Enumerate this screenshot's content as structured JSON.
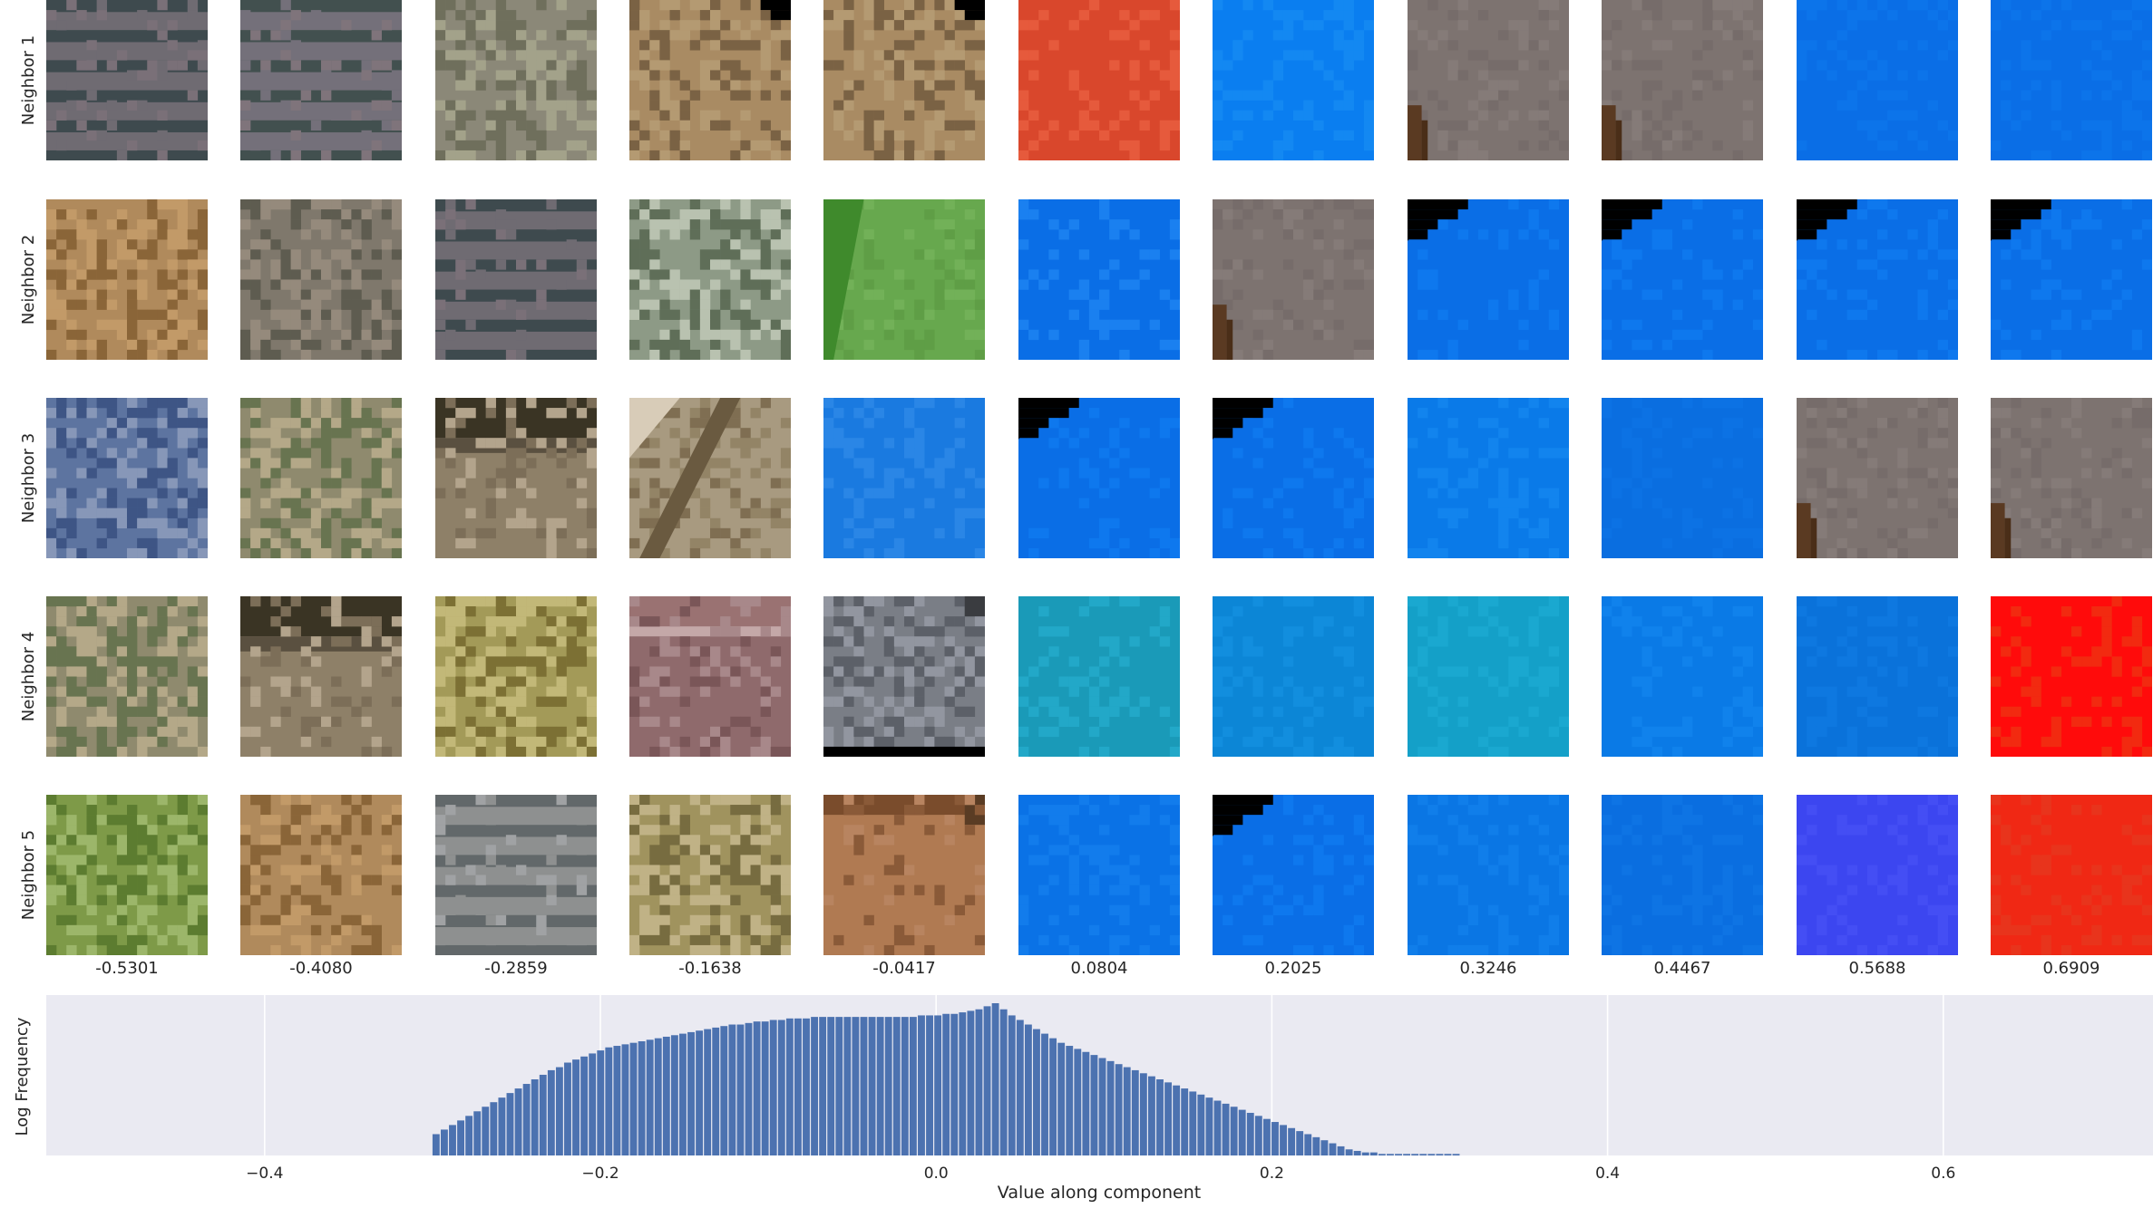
{
  "row_labels": [
    "Neighbor 1",
    "Neighbor 2",
    "Neighbor 3",
    "Neighbor 4",
    "Neighbor 5"
  ],
  "column_values": [
    "-0.5301",
    "-0.4080",
    "-0.2859",
    "-0.1638",
    "-0.0417",
    "0.0804",
    "0.2025",
    "0.3246",
    "0.4467",
    "0.5688",
    "0.6909"
  ],
  "tiles": [
    [
      {
        "kind": "stripes",
        "c1": "#6f6b72",
        "c2": "#3e4a4e",
        "c3": "#7a7078"
      },
      {
        "kind": "stripes",
        "c1": "#74707a",
        "c2": "#42504f",
        "c3": "#7f747b"
      },
      {
        "kind": "mottled",
        "c1": "#8b8878",
        "c2": "#6f6f5c",
        "c3": "#a3a28a"
      },
      {
        "kind": "dirt",
        "c1": "#a98b63",
        "c2": "#7a6244",
        "c3": "#b49a72",
        "corner": true
      },
      {
        "kind": "dirt",
        "c1": "#a98b63",
        "c2": "#7a6244",
        "c3": "#b49a72",
        "corner": true
      },
      {
        "kind": "solid",
        "c1": "#d9472c",
        "c2": "#e65a3c"
      },
      {
        "kind": "solid",
        "c1": "#0a7ef0",
        "c2": "#1388f2"
      },
      {
        "kind": "roof",
        "c1": "#7d7370",
        "c2": "#5a3a22"
      },
      {
        "kind": "roof",
        "c1": "#7d7370",
        "c2": "#5a3a22"
      },
      {
        "kind": "solid",
        "c1": "#0a6ee6",
        "c2": "#0c74ea"
      },
      {
        "kind": "solid",
        "c1": "#0a6ee6",
        "c2": "#0c74ea"
      }
    ],
    [
      {
        "kind": "dirt",
        "c1": "#b08a5c",
        "c2": "#8a6538",
        "c3": "#c29a68"
      },
      {
        "kind": "mottled",
        "c1": "#7f786c",
        "c2": "#5e5c50",
        "c3": "#958a7c"
      },
      {
        "kind": "stripes",
        "c1": "#6f6b72",
        "c2": "#3e4a4e",
        "c3": "#7a7078"
      },
      {
        "kind": "mottled",
        "c1": "#8d9a86",
        "c2": "#5f6e58",
        "c3": "#b9c2b0"
      },
      {
        "kind": "green",
        "c1": "#67a84e",
        "c2": "#3f8a2c"
      },
      {
        "kind": "solid",
        "c1": "#0a6ee6",
        "c2": "#1a80f0"
      },
      {
        "kind": "roof",
        "c1": "#7d7370",
        "c2": "#5a3a22"
      },
      {
        "kind": "blackcorner",
        "c1": "#0a6ee6",
        "c2": "#0e78ee"
      },
      {
        "kind": "blackcorner",
        "c1": "#0a6ee6",
        "c2": "#0e78ee"
      },
      {
        "kind": "blackcorner",
        "c1": "#0a6ee6",
        "c2": "#0e78ee"
      },
      {
        "kind": "blackcorner",
        "c1": "#0a6ee6",
        "c2": "#0e78ee"
      }
    ],
    [
      {
        "kind": "mottled",
        "c1": "#5d74a0",
        "c2": "#3e5585",
        "c3": "#8797b8"
      },
      {
        "kind": "mottled",
        "c1": "#8f8a6e",
        "c2": "#687450",
        "c3": "#b4a888"
      },
      {
        "kind": "shadow",
        "c1": "#8e8068",
        "c2": "#3a3424",
        "c3": "#b3a48c"
      },
      {
        "kind": "diag",
        "c1": "#a89a80",
        "c2": "#7f6e52",
        "c3": "#d8ccb8"
      },
      {
        "kind": "solid",
        "c1": "#1a7ae0",
        "c2": "#2a86e6"
      },
      {
        "kind": "blackcorner",
        "c1": "#0a6ee6",
        "c2": "#0e78ee"
      },
      {
        "kind": "blackcorner",
        "c1": "#0a6ee6",
        "c2": "#0e78ee"
      },
      {
        "kind": "solid",
        "c1": "#0a7ae8",
        "c2": "#1284ee"
      },
      {
        "kind": "solid",
        "c1": "#0a6ee0",
        "c2": "#0c72e4"
      },
      {
        "kind": "roof",
        "c1": "#7d7370",
        "c2": "#5a3a22"
      },
      {
        "kind": "roof",
        "c1": "#7d7370",
        "c2": "#5a3a22"
      }
    ],
    [
      {
        "kind": "mottled",
        "c1": "#8f8a6e",
        "c2": "#687450",
        "c3": "#b4a888"
      },
      {
        "kind": "shadow",
        "c1": "#8e8068",
        "c2": "#3a3424",
        "c3": "#b3a48c"
      },
      {
        "kind": "mottled",
        "c1": "#a39a58",
        "c2": "#7c7034",
        "c3": "#c2b878"
      },
      {
        "kind": "brick",
        "c1": "#8f6a6c",
        "c2": "#7a5658",
        "c3": "#a8888a"
      },
      {
        "kind": "gravel",
        "c1": "#7a7e86",
        "c2": "#5c6068",
        "c3": "#9296a0"
      },
      {
        "kind": "solid",
        "c1": "#1a9ab8",
        "c2": "#22a8c8"
      },
      {
        "kind": "solid",
        "c1": "#0c86d6",
        "c2": "#128ede"
      },
      {
        "kind": "solid",
        "c1": "#14a0c8",
        "c2": "#1aa8d0"
      },
      {
        "kind": "solid",
        "c1": "#0a7ae6",
        "c2": "#1082ec"
      },
      {
        "kind": "solid",
        "c1": "#0a72da",
        "c2": "#0e78e0"
      },
      {
        "kind": "solid",
        "c1": "#ff0b0b",
        "c2": "#f22a10"
      }
    ],
    [
      {
        "kind": "mottled",
        "c1": "#7e9a48",
        "c2": "#5c7c30",
        "c3": "#9cb66a"
      },
      {
        "kind": "dirt",
        "c1": "#b08a5c",
        "c2": "#8a6538",
        "c3": "#c29a68"
      },
      {
        "kind": "stripes",
        "c1": "#8e9090",
        "c2": "#62686a",
        "c3": "#a0a2a4"
      },
      {
        "kind": "mottled",
        "c1": "#a0935e",
        "c2": "#776c40",
        "c3": "#c0b286"
      },
      {
        "kind": "topband",
        "c1": "#b07a52",
        "c2": "#8a5a38"
      },
      {
        "kind": "solid",
        "c1": "#0a72e6",
        "c2": "#127cec"
      },
      {
        "kind": "blackcorner",
        "c1": "#0a6ee6",
        "c2": "#0e78ee"
      },
      {
        "kind": "solid",
        "c1": "#0a76e4",
        "c2": "#107eea"
      },
      {
        "kind": "solid",
        "c1": "#0a6ee0",
        "c2": "#0e74e4"
      },
      {
        "kind": "solid",
        "c1": "#3c46f0",
        "c2": "#444ef4"
      },
      {
        "kind": "solid",
        "c1": "#f02814",
        "c2": "#e8341c"
      }
    ]
  ],
  "histogram": {
    "ylabel": "Log Frequency",
    "xlabel": "Value along component",
    "xticks": [
      "−0.4",
      "−0.2",
      "0.0",
      "0.2",
      "0.4",
      "0.6"
    ],
    "tick_values": [
      -0.4,
      -0.2,
      0.0,
      0.2,
      0.4,
      0.6
    ]
  },
  "chart_data": {
    "type": "bar",
    "xlabel": "Value along component",
    "ylabel": "Log Frequency",
    "xlim": [
      -0.5301,
      0.7249
    ],
    "bin_width": 0.0049,
    "bins_start": -0.3,
    "log_frequency": [
      0.14,
      0.17,
      0.2,
      0.23,
      0.26,
      0.29,
      0.32,
      0.35,
      0.38,
      0.41,
      0.44,
      0.47,
      0.5,
      0.53,
      0.56,
      0.58,
      0.61,
      0.63,
      0.65,
      0.67,
      0.69,
      0.71,
      0.72,
      0.73,
      0.74,
      0.75,
      0.76,
      0.77,
      0.78,
      0.79,
      0.8,
      0.81,
      0.82,
      0.83,
      0.84,
      0.85,
      0.86,
      0.86,
      0.87,
      0.88,
      0.88,
      0.89,
      0.89,
      0.9,
      0.9,
      0.9,
      0.91,
      0.91,
      0.91,
      0.91,
      0.91,
      0.91,
      0.91,
      0.91,
      0.91,
      0.91,
      0.91,
      0.91,
      0.91,
      0.92,
      0.92,
      0.92,
      0.93,
      0.93,
      0.94,
      0.95,
      0.96,
      0.98,
      1.0,
      0.96,
      0.92,
      0.89,
      0.86,
      0.83,
      0.8,
      0.77,
      0.74,
      0.72,
      0.7,
      0.68,
      0.66,
      0.64,
      0.62,
      0.6,
      0.58,
      0.56,
      0.54,
      0.52,
      0.5,
      0.48,
      0.46,
      0.44,
      0.42,
      0.4,
      0.38,
      0.36,
      0.34,
      0.32,
      0.3,
      0.28,
      0.26,
      0.24,
      0.22,
      0.2,
      0.18,
      0.16,
      0.14,
      0.12,
      0.1,
      0.08,
      0.06,
      0.04,
      0.03,
      0.02,
      0.02,
      0.01,
      0.01,
      0.01,
      0.01,
      0.01,
      0.01,
      0.01,
      0.01,
      0.01,
      0.01
    ],
    "xticks": [
      -0.4,
      -0.2,
      0.0,
      0.2,
      0.4,
      0.6
    ],
    "grid": true,
    "colors": {
      "bar": "#4c72b0",
      "background": "#eaeaf2",
      "grid": "#ffffff"
    }
  }
}
